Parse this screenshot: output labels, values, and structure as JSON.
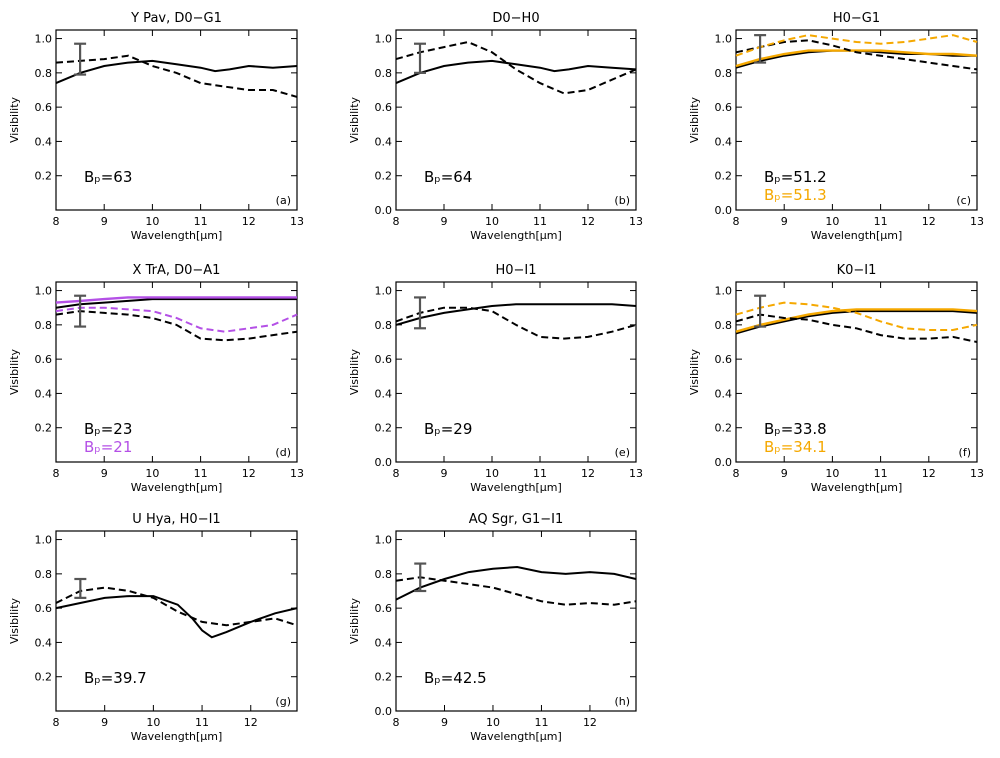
{
  "figure": {
    "shared": {
      "xlabel": "Wavelength[μm]",
      "ylabel": "Visibility",
      "yticks": [
        "0.0",
        "0.2",
        "0.4",
        "0.6",
        "0.8",
        "1.0"
      ]
    }
  },
  "chart_data": [
    {
      "type": "line",
      "id": "a",
      "title": "Y Pav, D0−G1",
      "panel_label": "(a)",
      "xlim": [
        8,
        13
      ],
      "ylim": [
        0,
        1.05
      ],
      "xticks": [
        8,
        9,
        10,
        11,
        12,
        13
      ],
      "xlabel": "Wavelength[μm]",
      "ylabel": "Visibility",
      "errorbar": {
        "x": 8.5,
        "low": 0.79,
        "high": 0.97
      },
      "annotations": [
        {
          "text": "Bₚ=63",
          "color": "#000000"
        }
      ],
      "series": [
        {
          "name": "model",
          "style": "solid",
          "color": "#000000",
          "x": [
            8,
            8.5,
            9,
            9.5,
            10,
            10.5,
            11,
            11.3,
            11.6,
            12,
            12.5,
            13
          ],
          "y": [
            0.74,
            0.8,
            0.84,
            0.86,
            0.87,
            0.85,
            0.83,
            0.81,
            0.82,
            0.84,
            0.83,
            0.84
          ]
        },
        {
          "name": "observed",
          "style": "dashed",
          "color": "#000000",
          "x": [
            8,
            8.5,
            9,
            9.5,
            10,
            10.5,
            11,
            11.5,
            12,
            12.5,
            13
          ],
          "y": [
            0.86,
            0.87,
            0.88,
            0.9,
            0.84,
            0.8,
            0.74,
            0.72,
            0.7,
            0.7,
            0.66
          ]
        }
      ]
    },
    {
      "type": "line",
      "id": "b",
      "title": "D0−H0",
      "panel_label": "(b)",
      "xlim": [
        8,
        13
      ],
      "ylim": [
        0,
        1.05
      ],
      "xticks": [
        8,
        9,
        10,
        11,
        12,
        13
      ],
      "xlabel": "Wavelength[μm]",
      "ylabel": "Visibility",
      "errorbar": {
        "x": 8.5,
        "low": 0.8,
        "high": 0.97
      },
      "annotations": [
        {
          "text": "Bₚ=64",
          "color": "#000000"
        }
      ],
      "series": [
        {
          "name": "model",
          "style": "solid",
          "color": "#000000",
          "x": [
            8,
            8.5,
            9,
            9.5,
            10,
            10.5,
            11,
            11.3,
            11.6,
            12,
            12.5,
            13
          ],
          "y": [
            0.74,
            0.8,
            0.84,
            0.86,
            0.87,
            0.85,
            0.83,
            0.81,
            0.82,
            0.84,
            0.83,
            0.82
          ]
        },
        {
          "name": "observed",
          "style": "dashed",
          "color": "#000000",
          "x": [
            8,
            8.5,
            9,
            9.5,
            10,
            10.5,
            11,
            11.5,
            12,
            12.5,
            13
          ],
          "y": [
            0.88,
            0.92,
            0.95,
            0.98,
            0.92,
            0.82,
            0.74,
            0.68,
            0.7,
            0.76,
            0.82
          ]
        }
      ]
    },
    {
      "type": "line",
      "id": "c",
      "title": "H0−G1",
      "panel_label": "(c)",
      "xlim": [
        8,
        13
      ],
      "ylim": [
        0,
        1.05
      ],
      "xticks": [
        8,
        9,
        10,
        11,
        12,
        13
      ],
      "xlabel": "Wavelength[μm]",
      "ylabel": "Visibility",
      "errorbar": {
        "x": 8.5,
        "low": 0.86,
        "high": 1.02
      },
      "annotations": [
        {
          "text": "Bₚ=51.2",
          "color": "#000000"
        },
        {
          "text": "Bₚ=51.3",
          "color": "#f5a800"
        }
      ],
      "series": [
        {
          "name": "model 51.2",
          "style": "solid",
          "color": "#000000",
          "x": [
            8,
            8.5,
            9,
            9.5,
            10,
            10.5,
            11,
            11.5,
            12,
            12.5,
            13
          ],
          "y": [
            0.83,
            0.87,
            0.9,
            0.92,
            0.93,
            0.93,
            0.92,
            0.91,
            0.91,
            0.9,
            0.9
          ]
        },
        {
          "name": "model 51.3",
          "style": "solid",
          "color": "#f5a800",
          "x": [
            8,
            8.5,
            9,
            9.5,
            10,
            10.5,
            11,
            11.5,
            12,
            12.5,
            13
          ],
          "y": [
            0.84,
            0.88,
            0.91,
            0.93,
            0.93,
            0.93,
            0.93,
            0.92,
            0.91,
            0.91,
            0.9
          ]
        },
        {
          "name": "observed 51.2",
          "style": "dashed",
          "color": "#000000",
          "x": [
            8,
            8.5,
            9,
            9.5,
            10,
            10.5,
            11,
            11.5,
            12,
            12.5,
            13
          ],
          "y": [
            0.92,
            0.95,
            0.98,
            0.99,
            0.96,
            0.92,
            0.9,
            0.88,
            0.86,
            0.84,
            0.82
          ]
        },
        {
          "name": "observed 51.3",
          "style": "dashed",
          "color": "#f5a800",
          "x": [
            8,
            8.5,
            9,
            9.5,
            10,
            10.5,
            11,
            11.5,
            12,
            12.5,
            13
          ],
          "y": [
            0.9,
            0.95,
            0.99,
            1.02,
            1.0,
            0.98,
            0.97,
            0.98,
            1.0,
            1.02,
            0.98
          ]
        }
      ]
    },
    {
      "type": "line",
      "id": "d",
      "title": "X TrA, D0−A1",
      "panel_label": "(d)",
      "xlim": [
        8,
        13
      ],
      "ylim": [
        0,
        1.05
      ],
      "xticks": [
        8,
        9,
        10,
        11,
        12,
        13
      ],
      "xlabel": "Wavelength[μm]",
      "ylabel": "Visibility",
      "errorbar": {
        "x": 8.5,
        "low": 0.79,
        "high": 0.97
      },
      "annotations": [
        {
          "text": "Bₚ=23",
          "color": "#000000"
        },
        {
          "text": "Bₚ=21",
          "color": "#b450e6"
        }
      ],
      "series": [
        {
          "name": "model 23",
          "style": "solid",
          "color": "#000000",
          "x": [
            8,
            8.5,
            9,
            9.5,
            10,
            10.5,
            11,
            11.5,
            12,
            12.5,
            13
          ],
          "y": [
            0.9,
            0.92,
            0.93,
            0.94,
            0.95,
            0.95,
            0.95,
            0.95,
            0.95,
            0.95,
            0.95
          ]
        },
        {
          "name": "model 21",
          "style": "solid",
          "color": "#b450e6",
          "x": [
            8,
            8.5,
            9,
            9.5,
            10,
            10.5,
            11,
            11.5,
            12,
            12.5,
            13
          ],
          "y": [
            0.93,
            0.94,
            0.95,
            0.96,
            0.96,
            0.96,
            0.96,
            0.96,
            0.96,
            0.96,
            0.96
          ]
        },
        {
          "name": "observed 23",
          "style": "dashed",
          "color": "#000000",
          "x": [
            8,
            8.5,
            9,
            9.5,
            10,
            10.5,
            11,
            11.5,
            12,
            12.5,
            13
          ],
          "y": [
            0.86,
            0.88,
            0.87,
            0.86,
            0.84,
            0.8,
            0.72,
            0.71,
            0.72,
            0.74,
            0.76
          ]
        },
        {
          "name": "observed 21",
          "style": "dashed",
          "color": "#b450e6",
          "x": [
            8,
            8.5,
            9,
            9.5,
            10,
            10.5,
            11,
            11.5,
            12,
            12.5,
            13
          ],
          "y": [
            0.88,
            0.9,
            0.9,
            0.89,
            0.88,
            0.84,
            0.78,
            0.76,
            0.78,
            0.8,
            0.86
          ]
        }
      ]
    },
    {
      "type": "line",
      "id": "e",
      "title": "H0−I1",
      "panel_label": "(e)",
      "xlim": [
        8,
        13
      ],
      "ylim": [
        0,
        1.05
      ],
      "xticks": [
        8,
        9,
        10,
        11,
        12,
        13
      ],
      "xlabel": "Wavelength[μm]",
      "ylabel": "Visibility",
      "errorbar": {
        "x": 8.5,
        "low": 0.78,
        "high": 0.96
      },
      "annotations": [
        {
          "text": "Bₚ=29",
          "color": "#000000"
        }
      ],
      "series": [
        {
          "name": "model",
          "style": "solid",
          "color": "#000000",
          "x": [
            8,
            8.5,
            9,
            9.5,
            10,
            10.5,
            11,
            11.5,
            12,
            12.5,
            13
          ],
          "y": [
            0.8,
            0.84,
            0.87,
            0.89,
            0.91,
            0.92,
            0.92,
            0.92,
            0.92,
            0.92,
            0.91
          ]
        },
        {
          "name": "observed",
          "style": "dashed",
          "color": "#000000",
          "x": [
            8,
            8.5,
            9,
            9.5,
            10,
            10.5,
            11,
            11.5,
            12,
            12.5,
            13
          ],
          "y": [
            0.82,
            0.87,
            0.9,
            0.9,
            0.88,
            0.8,
            0.73,
            0.72,
            0.73,
            0.76,
            0.8
          ]
        }
      ]
    },
    {
      "type": "line",
      "id": "f",
      "title": "K0−I1",
      "panel_label": "(f)",
      "xlim": [
        8,
        13
      ],
      "ylim": [
        0,
        1.05
      ],
      "xticks": [
        8,
        9,
        10,
        11,
        12,
        13
      ],
      "xlabel": "Wavelength[μm]",
      "ylabel": "Visibility",
      "errorbar": {
        "x": 8.5,
        "low": 0.79,
        "high": 0.97
      },
      "annotations": [
        {
          "text": "Bₚ=33.8",
          "color": "#000000"
        },
        {
          "text": "Bₚ=34.1",
          "color": "#f5a800"
        }
      ],
      "series": [
        {
          "name": "model 33.8",
          "style": "solid",
          "color": "#000000",
          "x": [
            8,
            8.5,
            9,
            9.5,
            10,
            10.5,
            11,
            11.5,
            12,
            12.5,
            13
          ],
          "y": [
            0.75,
            0.79,
            0.82,
            0.85,
            0.87,
            0.88,
            0.88,
            0.88,
            0.88,
            0.88,
            0.87
          ]
        },
        {
          "name": "model 34.1",
          "style": "solid",
          "color": "#f5a800",
          "x": [
            8,
            8.5,
            9,
            9.5,
            10,
            10.5,
            11,
            11.5,
            12,
            12.5,
            13
          ],
          "y": [
            0.76,
            0.8,
            0.83,
            0.86,
            0.88,
            0.89,
            0.89,
            0.89,
            0.89,
            0.89,
            0.88
          ]
        },
        {
          "name": "observed 33.8",
          "style": "dashed",
          "color": "#000000",
          "x": [
            8,
            8.5,
            9,
            9.5,
            10,
            10.5,
            11,
            11.5,
            12,
            12.5,
            13
          ],
          "y": [
            0.82,
            0.86,
            0.84,
            0.83,
            0.8,
            0.78,
            0.74,
            0.72,
            0.72,
            0.73,
            0.7
          ]
        },
        {
          "name": "observed 34.1",
          "style": "dashed",
          "color": "#f5a800",
          "x": [
            8,
            8.5,
            9,
            9.5,
            10,
            10.5,
            11,
            11.5,
            12,
            12.5,
            13
          ],
          "y": [
            0.86,
            0.9,
            0.93,
            0.92,
            0.9,
            0.87,
            0.82,
            0.78,
            0.77,
            0.77,
            0.8
          ]
        }
      ]
    },
    {
      "type": "line",
      "id": "g",
      "title": "U Hya, H0−I1",
      "panel_label": "(g)",
      "xlim": [
        8,
        12.95
      ],
      "ylim": [
        0,
        1.05
      ],
      "xticks": [
        8,
        9,
        10,
        11,
        12
      ],
      "xlabel": "Wavelength[μm]",
      "ylabel": "Visibility",
      "errorbar": {
        "x": 8.5,
        "low": 0.66,
        "high": 0.77
      },
      "annotations": [
        {
          "text": "Bₚ=39.7",
          "color": "#000000"
        }
      ],
      "series": [
        {
          "name": "model",
          "style": "solid",
          "color": "#000000",
          "x": [
            8,
            8.5,
            9,
            9.5,
            10,
            10.5,
            10.8,
            11,
            11.2,
            11.5,
            12,
            12.5,
            12.95
          ],
          "y": [
            0.6,
            0.63,
            0.66,
            0.67,
            0.67,
            0.62,
            0.54,
            0.47,
            0.43,
            0.46,
            0.52,
            0.57,
            0.6
          ]
        },
        {
          "name": "observed",
          "style": "dashed",
          "color": "#000000",
          "x": [
            8,
            8.5,
            9,
            9.5,
            10,
            10.5,
            11,
            11.5,
            12,
            12.5,
            12.95
          ],
          "y": [
            0.63,
            0.7,
            0.72,
            0.7,
            0.66,
            0.58,
            0.52,
            0.5,
            0.52,
            0.54,
            0.5
          ]
        }
      ]
    },
    {
      "type": "line",
      "id": "h",
      "title": "AQ Sgr, G1−I1",
      "panel_label": "(h)",
      "xlim": [
        8,
        12.95
      ],
      "ylim": [
        0,
        1.05
      ],
      "xticks": [
        8,
        9,
        10,
        11,
        12
      ],
      "xlabel": "Wavelength[μm]",
      "ylabel": "Visibility",
      "errorbar": {
        "x": 8.5,
        "low": 0.7,
        "high": 0.86
      },
      "annotations": [
        {
          "text": "Bₚ=42.5",
          "color": "#000000"
        }
      ],
      "series": [
        {
          "name": "model",
          "style": "solid",
          "color": "#000000",
          "x": [
            8,
            8.5,
            9,
            9.5,
            10,
            10.5,
            11,
            11.5,
            12,
            12.5,
            12.95
          ],
          "y": [
            0.65,
            0.72,
            0.77,
            0.81,
            0.83,
            0.84,
            0.81,
            0.8,
            0.81,
            0.8,
            0.77
          ]
        },
        {
          "name": "observed",
          "style": "dashed",
          "color": "#000000",
          "x": [
            8,
            8.5,
            9,
            9.5,
            10,
            10.5,
            11,
            11.5,
            12,
            12.5,
            12.95
          ],
          "y": [
            0.76,
            0.78,
            0.76,
            0.74,
            0.72,
            0.68,
            0.64,
            0.62,
            0.63,
            0.62,
            0.64
          ]
        }
      ]
    }
  ]
}
